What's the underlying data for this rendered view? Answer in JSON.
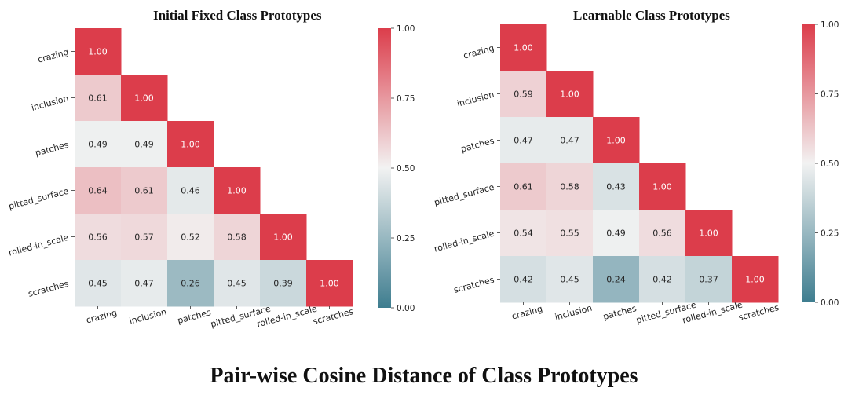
{
  "figure_title": "Pair-wise Cosine Distance of Class Prototypes",
  "colors": {
    "low": "#3e7d8f",
    "mid": "#f2f2f2",
    "high": "#dc3d4b"
  },
  "chart_data": [
    {
      "type": "heatmap",
      "title": "Initial Fixed Class Prototypes",
      "row_labels": [
        "crazing",
        "inclusion",
        "patches",
        "pitted_surface",
        "rolled-in_scale",
        "scratches"
      ],
      "col_labels": [
        "crazing",
        "inclusion",
        "patches",
        "pitted_surface",
        "rolled-in_scale",
        "scratches"
      ],
      "values": [
        [
          1.0
        ],
        [
          0.61,
          1.0
        ],
        [
          0.49,
          0.49,
          1.0
        ],
        [
          0.64,
          0.61,
          0.46,
          1.0
        ],
        [
          0.56,
          0.57,
          0.52,
          0.58,
          1.0
        ],
        [
          0.45,
          0.47,
          0.26,
          0.45,
          0.39,
          1.0
        ]
      ],
      "value_labels": [
        [
          "1.00"
        ],
        [
          "0.61",
          "1.00"
        ],
        [
          "0.49",
          "0.49",
          "1.00"
        ],
        [
          "0.64",
          "0.61",
          "0.46",
          "1.00"
        ],
        [
          "0.56",
          "0.57",
          "0.52",
          "0.58",
          "1.00"
        ],
        [
          "0.45",
          "0.47",
          "0.26",
          "0.45",
          "0.39",
          "1.00"
        ]
      ],
      "colorbar": {
        "range": [
          0,
          1
        ],
        "ticks": [
          1.0,
          0.75,
          0.5,
          0.25,
          0.0
        ],
        "tick_labels": [
          "1.00",
          "0.75",
          "0.50",
          "0.25",
          "0.00"
        ]
      }
    },
    {
      "type": "heatmap",
      "title": "Learnable Class Prototypes",
      "row_labels": [
        "crazing",
        "inclusion",
        "patches",
        "pitted_surface",
        "rolled-in_scale",
        "scratches"
      ],
      "col_labels": [
        "crazing",
        "inclusion",
        "patches",
        "pitted_surface",
        "rolled-in_scale",
        "scratches"
      ],
      "values": [
        [
          1.0
        ],
        [
          0.59,
          1.0
        ],
        [
          0.47,
          0.47,
          1.0
        ],
        [
          0.61,
          0.58,
          0.43,
          1.0
        ],
        [
          0.54,
          0.55,
          0.49,
          0.56,
          1.0
        ],
        [
          0.42,
          0.45,
          0.24,
          0.42,
          0.37,
          1.0
        ]
      ],
      "value_labels": [
        [
          "1.00"
        ],
        [
          "0.59",
          "1.00"
        ],
        [
          "0.47",
          "0.47",
          "1.00"
        ],
        [
          "0.61",
          "0.58",
          "0.43",
          "1.00"
        ],
        [
          "0.54",
          "0.55",
          "0.49",
          "0.56",
          "1.00"
        ],
        [
          "0.42",
          "0.45",
          "0.24",
          "0.42",
          "0.37",
          "1.00"
        ]
      ],
      "colorbar": {
        "range": [
          0,
          1
        ],
        "ticks": [
          1.0,
          0.75,
          0.5,
          0.25,
          0.0
        ],
        "tick_labels": [
          "1.00",
          "0.75",
          "0.50",
          "0.25",
          "0.00"
        ]
      }
    }
  ]
}
